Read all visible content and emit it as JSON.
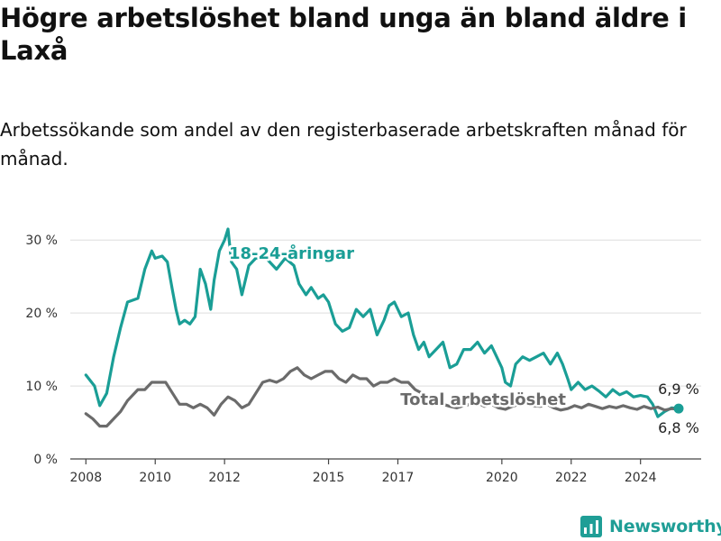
{
  "header": {
    "title": "Högre arbetslöshet bland unga än bland äldre i Laxå",
    "subtitle": "Arbetssökande som andel av den registerbaserade arbetskraften månad för månad."
  },
  "brand": {
    "name": "Newsworthy",
    "icon": "newsworthy-logo-icon",
    "color": "#1f9e96"
  },
  "chart_data": {
    "type": "line",
    "x_ticks": [
      "2008",
      "2010",
      "2012",
      "2015",
      "2017",
      "2020",
      "2022",
      "2024"
    ],
    "x_tick_values": [
      2008,
      2010,
      2012,
      2015,
      2017,
      2020,
      2022,
      2024
    ],
    "y_ticks": [
      "0 %",
      "10 %",
      "20 %",
      "30 %"
    ],
    "y_tick_values": [
      0,
      10,
      20,
      30
    ],
    "xlim": [
      2007.55,
      2025.75
    ],
    "ylim": [
      0,
      32
    ],
    "grid": true,
    "series": [
      {
        "name": "18-24-åringar",
        "color": "#1a9e96",
        "label_position": "top",
        "end_value_label": "6,9 %",
        "points": [
          [
            2008.0,
            11.5
          ],
          [
            2008.25,
            10.0
          ],
          [
            2008.4,
            7.3
          ],
          [
            2008.6,
            9.0
          ],
          [
            2008.8,
            14.0
          ],
          [
            2009.0,
            18.0
          ],
          [
            2009.2,
            21.5
          ],
          [
            2009.5,
            22.0
          ],
          [
            2009.7,
            26.0
          ],
          [
            2009.9,
            28.5
          ],
          [
            2010.0,
            27.5
          ],
          [
            2010.2,
            27.8
          ],
          [
            2010.35,
            27.0
          ],
          [
            2010.5,
            23.0
          ],
          [
            2010.6,
            20.5
          ],
          [
            2010.7,
            18.5
          ],
          [
            2010.85,
            19.0
          ],
          [
            2011.0,
            18.5
          ],
          [
            2011.15,
            19.5
          ],
          [
            2011.3,
            26.0
          ],
          [
            2011.45,
            24.0
          ],
          [
            2011.6,
            20.5
          ],
          [
            2011.7,
            24.5
          ],
          [
            2011.85,
            28.5
          ],
          [
            2012.0,
            30.0
          ],
          [
            2012.1,
            31.5
          ],
          [
            2012.2,
            27.0
          ],
          [
            2012.35,
            26.0
          ],
          [
            2012.5,
            22.5
          ],
          [
            2012.7,
            26.5
          ],
          [
            2012.9,
            27.5
          ],
          [
            2013.2,
            27.5
          ],
          [
            2013.5,
            26.0
          ],
          [
            2013.75,
            27.5
          ],
          [
            2014.0,
            26.5
          ],
          [
            2014.15,
            24.0
          ],
          [
            2014.35,
            22.5
          ],
          [
            2014.5,
            23.5
          ],
          [
            2014.7,
            22.0
          ],
          [
            2014.85,
            22.5
          ],
          [
            2015.0,
            21.5
          ],
          [
            2015.2,
            18.5
          ],
          [
            2015.4,
            17.5
          ],
          [
            2015.6,
            18.0
          ],
          [
            2015.8,
            20.5
          ],
          [
            2016.0,
            19.5
          ],
          [
            2016.2,
            20.5
          ],
          [
            2016.4,
            17.0
          ],
          [
            2016.6,
            19.0
          ],
          [
            2016.75,
            21.0
          ],
          [
            2016.9,
            21.5
          ],
          [
            2017.1,
            19.5
          ],
          [
            2017.3,
            20.0
          ],
          [
            2017.45,
            17.0
          ],
          [
            2017.6,
            15.0
          ],
          [
            2017.75,
            16.0
          ],
          [
            2017.9,
            14.0
          ],
          [
            2018.1,
            15.0
          ],
          [
            2018.3,
            16.0
          ],
          [
            2018.5,
            12.5
          ],
          [
            2018.7,
            13.0
          ],
          [
            2018.9,
            15.0
          ],
          [
            2019.1,
            15.0
          ],
          [
            2019.3,
            16.0
          ],
          [
            2019.5,
            14.5
          ],
          [
            2019.7,
            15.5
          ],
          [
            2019.85,
            14.0
          ],
          [
            2020.0,
            12.5
          ],
          [
            2020.1,
            10.5
          ],
          [
            2020.25,
            10.0
          ],
          [
            2020.4,
            13.0
          ],
          [
            2020.6,
            14.0
          ],
          [
            2020.8,
            13.5
          ],
          [
            2021.0,
            14.0
          ],
          [
            2021.2,
            14.5
          ],
          [
            2021.4,
            13.0
          ],
          [
            2021.6,
            14.5
          ],
          [
            2021.75,
            13.0
          ],
          [
            2021.9,
            11.0
          ],
          [
            2022.0,
            9.5
          ],
          [
            2022.2,
            10.5
          ],
          [
            2022.4,
            9.5
          ],
          [
            2022.6,
            10.0
          ],
          [
            2022.8,
            9.3
          ],
          [
            2023.0,
            8.5
          ],
          [
            2023.2,
            9.5
          ],
          [
            2023.4,
            8.8
          ],
          [
            2023.6,
            9.2
          ],
          [
            2023.8,
            8.5
          ],
          [
            2024.0,
            8.7
          ],
          [
            2024.2,
            8.5
          ],
          [
            2024.35,
            7.5
          ],
          [
            2024.5,
            5.8
          ],
          [
            2024.7,
            6.5
          ],
          [
            2024.9,
            7.0
          ],
          [
            2025.1,
            6.9
          ]
        ]
      },
      {
        "name": "Total arbetslöshet",
        "color": "#6b6b6b",
        "label_position": "bottom",
        "end_value_label": "6,8 %",
        "points": [
          [
            2008.0,
            6.2
          ],
          [
            2008.2,
            5.5
          ],
          [
            2008.4,
            4.5
          ],
          [
            2008.6,
            4.5
          ],
          [
            2008.8,
            5.5
          ],
          [
            2009.0,
            6.5
          ],
          [
            2009.2,
            8.0
          ],
          [
            2009.5,
            9.5
          ],
          [
            2009.7,
            9.5
          ],
          [
            2009.9,
            10.5
          ],
          [
            2010.1,
            10.5
          ],
          [
            2010.3,
            10.5
          ],
          [
            2010.5,
            9.0
          ],
          [
            2010.7,
            7.5
          ],
          [
            2010.9,
            7.5
          ],
          [
            2011.1,
            7.0
          ],
          [
            2011.3,
            7.5
          ],
          [
            2011.5,
            7.0
          ],
          [
            2011.7,
            6.0
          ],
          [
            2011.9,
            7.5
          ],
          [
            2012.1,
            8.5
          ],
          [
            2012.3,
            8.0
          ],
          [
            2012.5,
            7.0
          ],
          [
            2012.7,
            7.5
          ],
          [
            2012.9,
            9.0
          ],
          [
            2013.1,
            10.5
          ],
          [
            2013.3,
            10.8
          ],
          [
            2013.5,
            10.5
          ],
          [
            2013.7,
            11.0
          ],
          [
            2013.9,
            12.0
          ],
          [
            2014.1,
            12.5
          ],
          [
            2014.3,
            11.5
          ],
          [
            2014.5,
            11.0
          ],
          [
            2014.7,
            11.5
          ],
          [
            2014.9,
            12.0
          ],
          [
            2015.1,
            12.0
          ],
          [
            2015.3,
            11.0
          ],
          [
            2015.5,
            10.5
          ],
          [
            2015.7,
            11.5
          ],
          [
            2015.9,
            11.0
          ],
          [
            2016.1,
            11.0
          ],
          [
            2016.3,
            10.0
          ],
          [
            2016.5,
            10.5
          ],
          [
            2016.7,
            10.5
          ],
          [
            2016.9,
            11.0
          ],
          [
            2017.1,
            10.5
          ],
          [
            2017.3,
            10.5
          ],
          [
            2017.5,
            9.5
          ],
          [
            2017.7,
            9.0
          ],
          [
            2017.9,
            8.0
          ],
          [
            2018.1,
            8.0
          ],
          [
            2018.3,
            7.5
          ],
          [
            2018.5,
            7.2
          ],
          [
            2018.7,
            7.0
          ],
          [
            2018.9,
            7.3
          ],
          [
            2019.1,
            7.5
          ],
          [
            2019.3,
            7.7
          ],
          [
            2019.5,
            7.2
          ],
          [
            2019.7,
            7.5
          ],
          [
            2019.9,
            7.0
          ],
          [
            2020.1,
            6.8
          ],
          [
            2020.3,
            7.2
          ],
          [
            2020.5,
            7.5
          ],
          [
            2020.7,
            7.5
          ],
          [
            2020.9,
            7.3
          ],
          [
            2021.1,
            7.2
          ],
          [
            2021.3,
            7.5
          ],
          [
            2021.5,
            7.0
          ],
          [
            2021.7,
            6.7
          ],
          [
            2021.9,
            6.9
          ],
          [
            2022.1,
            7.3
          ],
          [
            2022.3,
            7.0
          ],
          [
            2022.5,
            7.5
          ],
          [
            2022.7,
            7.2
          ],
          [
            2022.9,
            6.9
          ],
          [
            2023.1,
            7.2
          ],
          [
            2023.3,
            7.0
          ],
          [
            2023.5,
            7.3
          ],
          [
            2023.7,
            7.0
          ],
          [
            2023.9,
            6.8
          ],
          [
            2024.1,
            7.2
          ],
          [
            2024.3,
            6.9
          ],
          [
            2024.5,
            7.1
          ],
          [
            2024.7,
            6.7
          ],
          [
            2024.9,
            6.9
          ],
          [
            2025.1,
            6.8
          ]
        ]
      }
    ]
  }
}
